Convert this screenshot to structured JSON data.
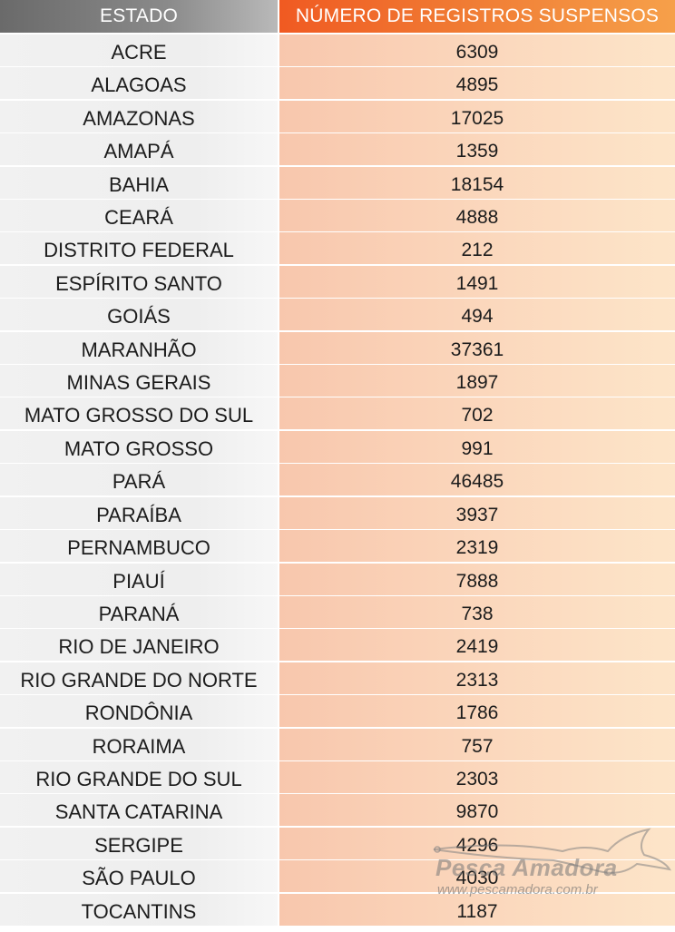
{
  "chart_data": {
    "type": "table",
    "columns": [
      "ESTADO",
      "NÚMERO DE REGISTROS SUSPENSOS"
    ],
    "rows": [
      {
        "estado": "ACRE",
        "valor": "6309"
      },
      {
        "estado": "ALAGOAS",
        "valor": "4895"
      },
      {
        "estado": "AMAZONAS",
        "valor": "17025"
      },
      {
        "estado": "AMAPÁ",
        "valor": "1359"
      },
      {
        "estado": "BAHIA",
        "valor": "18154"
      },
      {
        "estado": "CEARÁ",
        "valor": "4888"
      },
      {
        "estado": "DISTRITO FEDERAL",
        "valor": "212"
      },
      {
        "estado": "ESPÍRITO SANTO",
        "valor": "1491"
      },
      {
        "estado": "GOIÁS",
        "valor": "494"
      },
      {
        "estado": "MARANHÃO",
        "valor": "37361"
      },
      {
        "estado": "MINAS GERAIS",
        "valor": "1897"
      },
      {
        "estado": "MATO GROSSO DO SUL",
        "valor": "702"
      },
      {
        "estado": "MATO GROSSO",
        "valor": "991"
      },
      {
        "estado": "PARÁ",
        "valor": "46485"
      },
      {
        "estado": "PARAÍBA",
        "valor": "3937"
      },
      {
        "estado": "PERNAMBUCO",
        "valor": "2319"
      },
      {
        "estado": "PIAUÍ",
        "valor": "7888"
      },
      {
        "estado": "PARANÁ",
        "valor": "738"
      },
      {
        "estado": "RIO DE JANEIRO",
        "valor": "2419"
      },
      {
        "estado": "RIO GRANDE DO NORTE",
        "valor": "2313"
      },
      {
        "estado": "RONDÔNIA",
        "valor": "1786"
      },
      {
        "estado": "RORAIMA",
        "valor": "757"
      },
      {
        "estado": "RIO GRANDE DO SUL",
        "valor": "2303"
      },
      {
        "estado": "SANTA CATARINA",
        "valor": "9870"
      },
      {
        "estado": "SERGIPE",
        "valor": "4296"
      },
      {
        "estado": "SÃO PAULO",
        "valor": "4030"
      },
      {
        "estado": "TOCANTINS",
        "valor": "1187"
      }
    ]
  },
  "watermark": {
    "brand": "Pesca Amadora",
    "url": "www.pescamadora.com.br",
    "icon": "swordfish-icon"
  },
  "colors": {
    "header_left": "#7a7a7a",
    "header_right": "#f05a22",
    "cell_left": "#efefef",
    "cell_right": "#fbd3b8"
  }
}
